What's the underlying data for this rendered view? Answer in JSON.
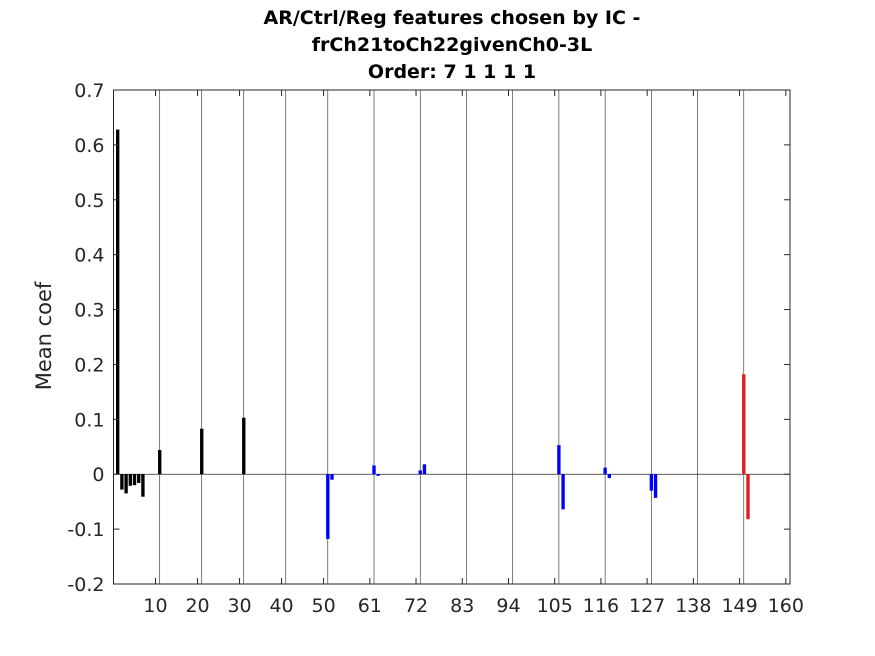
{
  "chart_data": {
    "type": "bar",
    "title": [
      "AR/Ctrl/Reg features chosen by IC -",
      "frCh21toCh22givenCh0-3L",
      "Order: 7 1 1 1 1"
    ],
    "xlabel": "",
    "ylabel": "Mean coef",
    "xlim": [
      0,
      161
    ],
    "ylim": [
      -0.2,
      0.7
    ],
    "x_ticks": [
      10,
      20,
      30,
      40,
      50,
      61,
      72,
      83,
      94,
      105,
      116,
      127,
      138,
      149,
      160
    ],
    "y_ticks": [
      -0.2,
      -0.1,
      0,
      0.1,
      0.2,
      0.3,
      0.4,
      0.5,
      0.6,
      0.7
    ],
    "y_tick_labels": [
      "-0.2",
      "-0.1",
      "0",
      "0.1",
      "0.2",
      "0.3",
      "0.4",
      "0.5",
      "0.6",
      "0.7"
    ],
    "vertical_gridlines_at": [
      11,
      21,
      31,
      41,
      51,
      62,
      73,
      84,
      95,
      106,
      117,
      128,
      139,
      150,
      161
    ],
    "grid": "x-only",
    "series": [
      {
        "color": "#000000",
        "bars": [
          {
            "x": 1,
            "y": 0.628
          },
          {
            "x": 2,
            "y": -0.028
          },
          {
            "x": 3,
            "y": -0.035
          },
          {
            "x": 4,
            "y": -0.021
          },
          {
            "x": 5,
            "y": -0.02
          },
          {
            "x": 6,
            "y": -0.016
          },
          {
            "x": 7,
            "y": -0.041
          },
          {
            "x": 11,
            "y": 0.044
          },
          {
            "x": 21,
            "y": 0.083
          },
          {
            "x": 31,
            "y": 0.103
          }
        ]
      },
      {
        "color": "#0000ff",
        "bars": [
          {
            "x": 51,
            "y": -0.118
          },
          {
            "x": 52,
            "y": -0.01
          },
          {
            "x": 62,
            "y": 0.016
          },
          {
            "x": 63,
            "y": -0.003
          },
          {
            "x": 73,
            "y": 0.007
          },
          {
            "x": 74,
            "y": 0.018
          },
          {
            "x": 106,
            "y": 0.053
          },
          {
            "x": 107,
            "y": -0.064
          },
          {
            "x": 117,
            "y": 0.012
          },
          {
            "x": 118,
            "y": -0.007
          },
          {
            "x": 128,
            "y": -0.03
          },
          {
            "x": 129,
            "y": -0.043
          }
        ]
      },
      {
        "color": "#e31a1c",
        "bars": [
          {
            "x": 150,
            "y": 0.182
          },
          {
            "x": 151,
            "y": -0.082
          }
        ]
      }
    ]
  }
}
